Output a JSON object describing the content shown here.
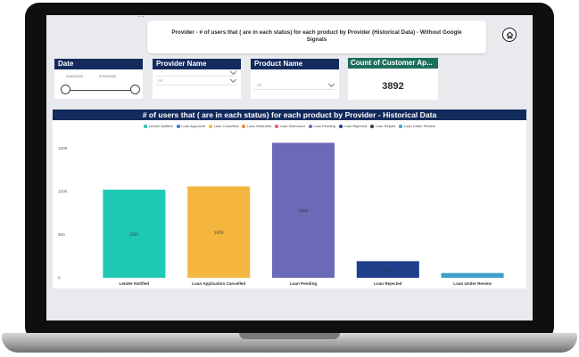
{
  "header": {
    "title": "Provider - # of users that ( are in each status) for each product by Provider (Historical Data) - Without Google Signals",
    "more_icon": "more-dots-icon",
    "home_icon": "home-icon"
  },
  "date_slicer": {
    "title": "Date",
    "start": "21/03/2022",
    "end": "07/03/2023"
  },
  "provider_slicer": {
    "title": "Provider Name",
    "value": "All"
  },
  "product_slicer": {
    "title": "Product Name",
    "value": "All"
  },
  "count_card": {
    "title": "Count of Customer Ap...",
    "value": "3892"
  },
  "legend": [
    {
      "label": "Lender Notified",
      "color": "#1ec8b4"
    },
    {
      "label": "Loan Approved",
      "color": "#2e7fd1"
    },
    {
      "label": "Loan Cancelled",
      "color": "#f4b63f"
    },
    {
      "label": "Loan Defaulted",
      "color": "#f08a3c"
    },
    {
      "label": "Loan Disbursed",
      "color": "#e85a6e"
    },
    {
      "label": "Loan Pending",
      "color": "#6b6ab8"
    },
    {
      "label": "Loan Rejected",
      "color": "#1f3f8a"
    },
    {
      "label": "Loan Repaid",
      "color": "#3a3a3a"
    },
    {
      "label": "Loan Under Review",
      "color": "#3ea0c9"
    }
  ],
  "chart_data": {
    "type": "bar",
    "title": "# of users that ( are in each status) for each product by Provider - Historical Data",
    "categories": [
      "Lender Notified",
      "Loan Application Cancelled",
      "Loan Pending",
      "Loan Rejected",
      "Loan Under Review"
    ],
    "values": [
      1021,
      1059,
      1565,
      192,
      55
    ],
    "data_labels": [
      "1021",
      "1059",
      "1565",
      "192",
      ""
    ],
    "colors": [
      "#1ec8b4",
      "#f4b63f",
      "#6b6ab8",
      "#1f3f8a",
      "#3ea0c9"
    ],
    "y_ticks": [
      0,
      500,
      1000,
      1500
    ],
    "ylim": [
      0,
      1600
    ],
    "grid": false,
    "legend_position": "top-center"
  }
}
